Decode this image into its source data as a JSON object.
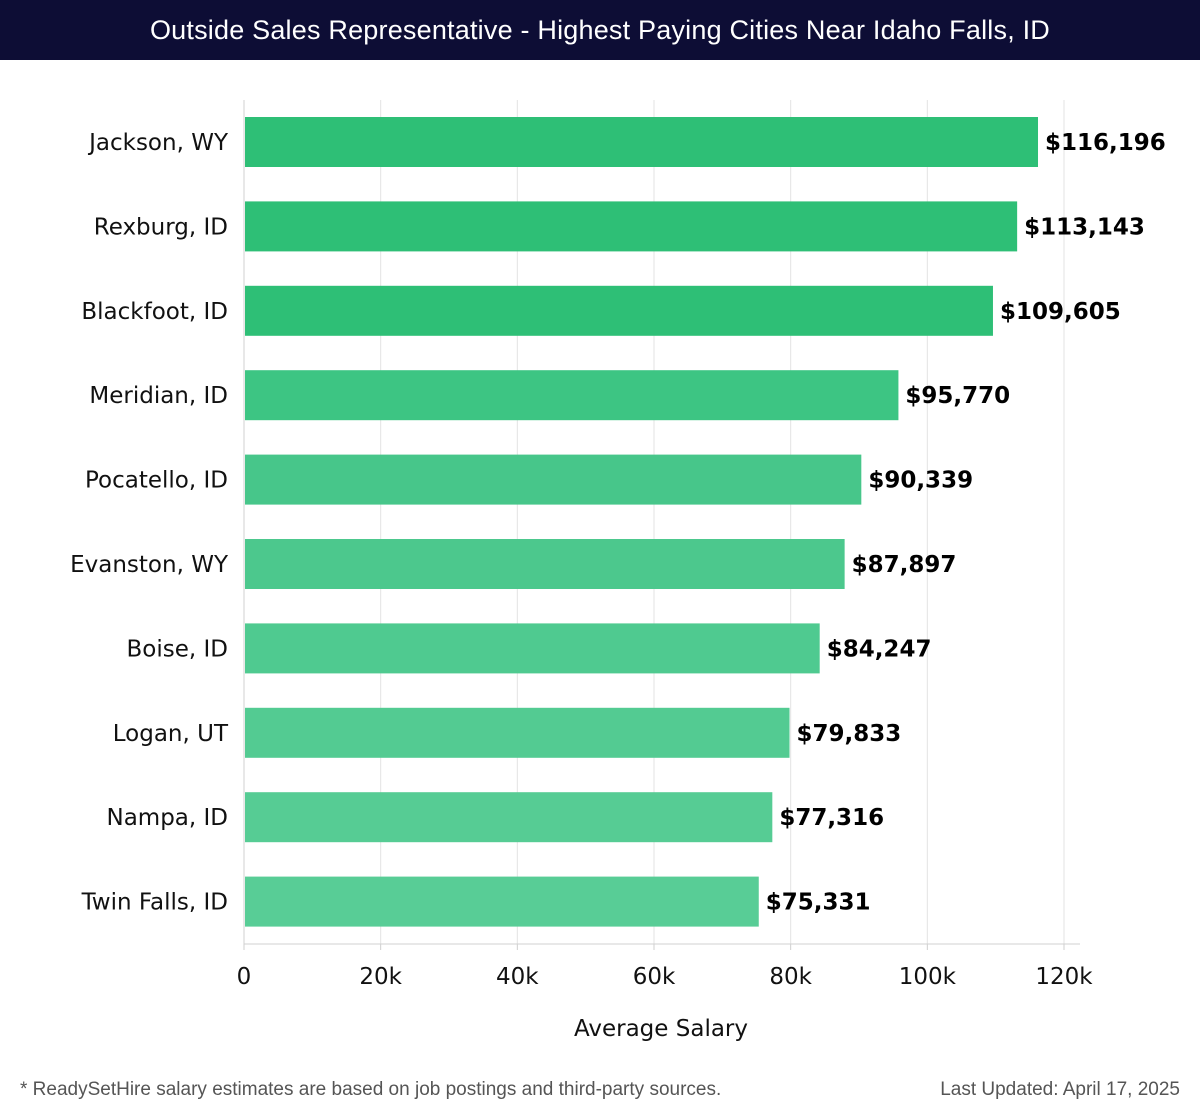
{
  "header": {
    "title": "Outside Sales Representative - Highest Paying Cities Near Idaho Falls, ID"
  },
  "chart_data": {
    "type": "bar",
    "orientation": "horizontal",
    "title": "Outside Sales Representative - Highest Paying Cities Near Idaho Falls, ID",
    "xlabel": "Average Salary",
    "ylabel": "",
    "xlim": [
      0,
      120000
    ],
    "ticks": [
      {
        "value": 0,
        "label": "0"
      },
      {
        "value": 20000,
        "label": "20k"
      },
      {
        "value": 40000,
        "label": "40k"
      },
      {
        "value": 60000,
        "label": "60k"
      },
      {
        "value": 80000,
        "label": "80k"
      },
      {
        "value": 100000,
        "label": "100k"
      },
      {
        "value": 120000,
        "label": "120k"
      }
    ],
    "grid": true,
    "categories": [
      "Jackson, WY",
      "Rexburg, ID",
      "Blackfoot, ID",
      "Meridian, ID",
      "Pocatello, ID",
      "Evanston, WY",
      "Boise, ID",
      "Logan, UT",
      "Nampa, ID",
      "Twin Falls, ID"
    ],
    "values": [
      116196,
      113143,
      109605,
      95770,
      90339,
      87897,
      84247,
      79833,
      77316,
      75331
    ],
    "value_labels": [
      "$116,196",
      "$113,143",
      "$109,605",
      "$95,770",
      "$90,339",
      "$87,897",
      "$84,247",
      "$79,833",
      "$77,316",
      "$75,331"
    ],
    "bar_colors": [
      "#2ebf76",
      "#2ebf76",
      "#2ebf76",
      "#3dc583",
      "#47c68a",
      "#4cc88d",
      "#4fca90",
      "#53cb92",
      "#56cc94",
      "#58cd96"
    ]
  },
  "footer": {
    "note": "* ReadySetHire salary estimates are based on job postings and third-party sources.",
    "updated": "Last Updated: April 17, 2025"
  }
}
